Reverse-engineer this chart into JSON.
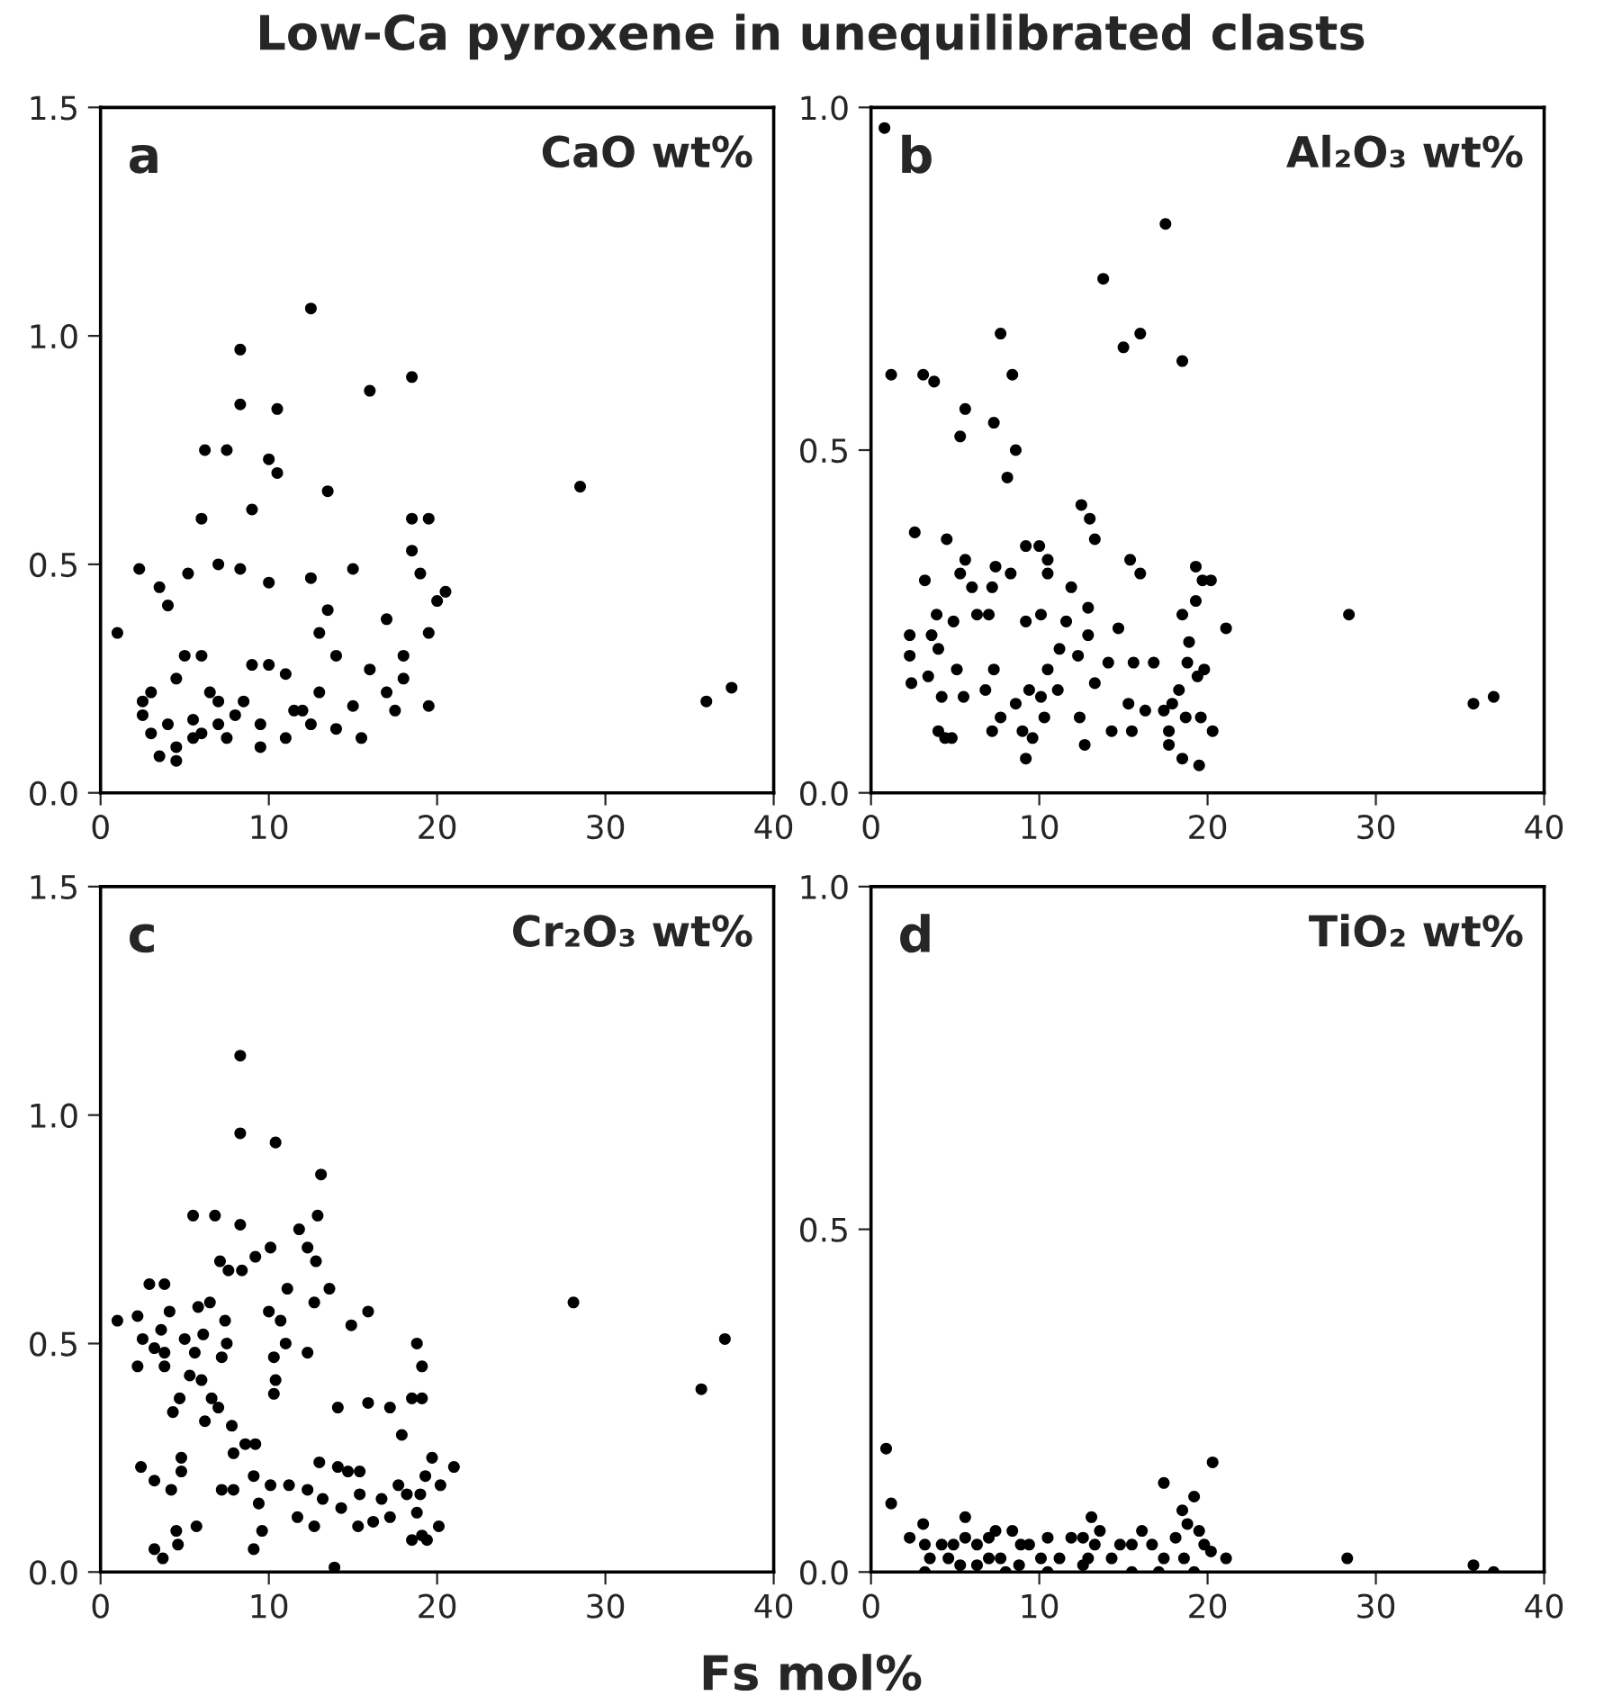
{
  "chart_data": [
    {
      "type": "scatter",
      "title": "Low-Ca pyroxene in unequilibrated clasts",
      "annotations": [
        "a",
        "CaO wt%"
      ],
      "xlim": [
        0,
        40
      ],
      "xticks": [
        0,
        10,
        20,
        30,
        40
      ],
      "ylim": [
        0,
        1.5
      ],
      "yticks": [
        {
          "value": 0,
          "label": "0.0"
        },
        {
          "value": 0.5,
          "label": "0.5"
        },
        {
          "value": 1.0,
          "label": "1.0"
        },
        {
          "value": 1.5,
          "label": "1.5"
        }
      ],
      "grid": false,
      "marker": "circle",
      "series": [
        {
          "color": "#000000",
          "x": [
            1,
            2.3,
            2.5,
            3,
            2.5,
            3.5,
            4,
            4.5,
            4.5,
            5,
            5.2,
            5.5,
            5.5,
            6,
            6.2,
            6,
            6.5,
            7,
            7,
            7,
            7.5,
            7.5,
            8.3,
            8.3,
            8.3,
            8.5,
            9,
            9,
            9.5,
            10,
            10,
            10,
            10.5,
            10.5,
            11,
            11,
            12.5,
            12,
            12.5,
            13,
            13,
            13.5,
            13.5,
            14,
            14,
            15,
            15,
            15.5,
            16,
            16,
            17,
            17.5,
            18,
            18.5,
            18.5,
            18.5,
            19,
            19.5,
            19.5,
            20,
            20.5,
            19.5,
            28.5,
            36,
            37.5,
            3,
            4,
            3.5,
            4.5,
            6,
            8,
            9.5,
            11.5,
            12.5,
            17,
            18
          ],
          "values": [
            0.35,
            0.49,
            0.2,
            0.13,
            0.17,
            0.45,
            0.41,
            0.25,
            0.1,
            0.3,
            0.48,
            0.16,
            0.12,
            0.3,
            0.75,
            0.6,
            0.22,
            0.2,
            0.15,
            0.5,
            0.75,
            0.12,
            0.97,
            0.85,
            0.49,
            0.2,
            0.62,
            0.28,
            0.15,
            0.73,
            0.28,
            0.46,
            0.84,
            0.7,
            0.26,
            0.12,
            1.06,
            0.18,
            0.47,
            0.35,
            0.22,
            0.66,
            0.4,
            0.3,
            0.14,
            0.49,
            0.19,
            0.12,
            0.88,
            0.27,
            0.38,
            0.18,
            0.25,
            0.91,
            0.6,
            0.53,
            0.48,
            0.6,
            0.35,
            0.42,
            0.44,
            0.19,
            0.67,
            0.2,
            0.23,
            0.22,
            0.15,
            0.08,
            0.07,
            0.13,
            0.17,
            0.1,
            0.18,
            0.15,
            0.22,
            0.3
          ]
        }
      ]
    },
    {
      "type": "scatter",
      "annotations": [
        "b",
        "Al₂O₃ wt%"
      ],
      "xlim": [
        0,
        40
      ],
      "xticks": [
        0,
        10,
        20,
        30,
        40
      ],
      "ylim": [
        0,
        1.0
      ],
      "yticks": [
        {
          "value": 0,
          "label": "0.0"
        },
        {
          "value": 0.5,
          "label": "0.5"
        },
        {
          "value": 1.0,
          "label": "1.0"
        }
      ],
      "grid": false,
      "marker": "circle",
      "series": [
        {
          "color": "#000000",
          "x": [
            0.8,
            1.2,
            3.1,
            3.75,
            5.6,
            5.3,
            7.3,
            7.7,
            8.4,
            8.6,
            8.1,
            13.8,
            15,
            16,
            17.5,
            18.5,
            12.5,
            13,
            13.3,
            2.6,
            4.5,
            28.4,
            35.8,
            37,
            3.2,
            3.9,
            4.9,
            5.3,
            5.6,
            6,
            6.3,
            7,
            7.2,
            7.4,
            8.3,
            9.2,
            10,
            10.5,
            10.5,
            11.9,
            12.9,
            12.9,
            11.6,
            10.1,
            9.2,
            14.7,
            15.4,
            16,
            19.3,
            19.7,
            20.2,
            21.1,
            19.3,
            18.5,
            18.9,
            18.8,
            16.8,
            15.6,
            14.1,
            12.3,
            11.2,
            10.5,
            11.1,
            10.1,
            9.4,
            8.6,
            7.7,
            7.3,
            6.8,
            5.1,
            5.5,
            4.2,
            3.4,
            2.4,
            2.3,
            2.3,
            3.6,
            4,
            4,
            4.4,
            4.8,
            7.2,
            9,
            9.2,
            9.6,
            10.3,
            12.4,
            12.7,
            13.3,
            14.3,
            15.3,
            15.5,
            16.3,
            17.4,
            17.9,
            18.3,
            17.7,
            17.7,
            18.5,
            19.5,
            18.7,
            19.6,
            20.3,
            19.4,
            19.8
          ],
          "values": [
            0.97,
            0.61,
            0.61,
            0.6,
            0.56,
            0.52,
            0.54,
            0.67,
            0.61,
            0.5,
            0.46,
            0.75,
            0.65,
            0.67,
            0.83,
            0.63,
            0.42,
            0.4,
            0.37,
            0.38,
            0.37,
            0.26,
            0.13,
            0.14,
            0.31,
            0.26,
            0.25,
            0.32,
            0.34,
            0.3,
            0.26,
            0.26,
            0.3,
            0.33,
            0.32,
            0.36,
            0.36,
            0.34,
            0.32,
            0.3,
            0.27,
            0.23,
            0.25,
            0.26,
            0.25,
            0.24,
            0.34,
            0.32,
            0.33,
            0.31,
            0.31,
            0.24,
            0.28,
            0.26,
            0.22,
            0.19,
            0.19,
            0.19,
            0.19,
            0.2,
            0.21,
            0.18,
            0.15,
            0.14,
            0.15,
            0.13,
            0.11,
            0.18,
            0.15,
            0.18,
            0.14,
            0.14,
            0.17,
            0.16,
            0.2,
            0.23,
            0.23,
            0.21,
            0.09,
            0.08,
            0.08,
            0.09,
            0.09,
            0.05,
            0.08,
            0.11,
            0.11,
            0.07,
            0.16,
            0.09,
            0.13,
            0.09,
            0.12,
            0.12,
            0.13,
            0.15,
            0.09,
            0.07,
            0.05,
            0.04,
            0.11,
            0.11,
            0.09,
            0.17,
            0.18
          ]
        }
      ]
    },
    {
      "type": "scatter",
      "annotations": [
        "c",
        "Cr₂O₃ wt%"
      ],
      "xlabel": "Fs mol%",
      "xlim": [
        0,
        40
      ],
      "xticks": [
        0,
        10,
        20,
        30,
        40
      ],
      "ylim": [
        0,
        1.5
      ],
      "yticks": [
        {
          "value": 0,
          "label": "0.0"
        },
        {
          "value": 0.5,
          "label": "0.5"
        },
        {
          "value": 1.0,
          "label": "1.0"
        },
        {
          "value": 1.5,
          "label": "1.5"
        }
      ],
      "grid": false,
      "marker": "circle",
      "series": [
        {
          "color": "#000000",
          "x": [
            8.3,
            8.3,
            10.4,
            13.1,
            12.9,
            11.8,
            12.3,
            12.8,
            5.5,
            6.8,
            8.3,
            7.1,
            7.6,
            8.4,
            9.2,
            10.1,
            11.1,
            12.7,
            13.6,
            14.9,
            15.9,
            18.8,
            19.1,
            28.1,
            37.1,
            35.7,
            2.9,
            3.8,
            1,
            2.2,
            2.5,
            3.6,
            4.1,
            3.2,
            3.8,
            2.2,
            3.8,
            5,
            5.6,
            6.1,
            5.8,
            6.5,
            7.4,
            7.5,
            7.2,
            5.3,
            6,
            4.7,
            4.3,
            6.6,
            7,
            6.2,
            7.8,
            10,
            10.7,
            11,
            10.3,
            10.4,
            10.3,
            12.3,
            14.1,
            15.9,
            17.2,
            18.5,
            19.1,
            17.9,
            8.6,
            7.9,
            9.2,
            2.4,
            3.2,
            4.2,
            4.8,
            4.8,
            7.2,
            7.9,
            9.1,
            10.1,
            11.2,
            12.3,
            13,
            13.2,
            14.1,
            14.7,
            15.4,
            15.4,
            16.7,
            17.7,
            18.2,
            19,
            19.7,
            19.3,
            20.2,
            21,
            18.8,
            18.5,
            19.1,
            20.1,
            19.4,
            17.2,
            16.2,
            15.3,
            14.3,
            12.7,
            11.7,
            9.6,
            9.4,
            9.1,
            5.7,
            4.6,
            4.5,
            3.2,
            3.7,
            13.9
          ],
          "values": [
            1.13,
            0.96,
            0.94,
            0.87,
            0.78,
            0.75,
            0.71,
            0.68,
            0.78,
            0.78,
            0.76,
            0.68,
            0.66,
            0.66,
            0.69,
            0.71,
            0.62,
            0.59,
            0.62,
            0.54,
            0.57,
            0.5,
            0.45,
            0.59,
            0.51,
            0.4,
            0.63,
            0.63,
            0.55,
            0.56,
            0.51,
            0.53,
            0.57,
            0.49,
            0.48,
            0.45,
            0.45,
            0.51,
            0.48,
            0.52,
            0.58,
            0.59,
            0.55,
            0.5,
            0.47,
            0.43,
            0.42,
            0.38,
            0.35,
            0.38,
            0.36,
            0.33,
            0.32,
            0.57,
            0.55,
            0.5,
            0.47,
            0.42,
            0.39,
            0.48,
            0.36,
            0.37,
            0.36,
            0.38,
            0.38,
            0.3,
            0.28,
            0.26,
            0.28,
            0.23,
            0.2,
            0.18,
            0.25,
            0.22,
            0.18,
            0.18,
            0.21,
            0.19,
            0.19,
            0.18,
            0.24,
            0.16,
            0.23,
            0.22,
            0.22,
            0.17,
            0.16,
            0.19,
            0.17,
            0.17,
            0.25,
            0.21,
            0.19,
            0.23,
            0.13,
            0.07,
            0.08,
            0.1,
            0.07,
            0.12,
            0.11,
            0.1,
            0.14,
            0.1,
            0.12,
            0.09,
            0.15,
            0.05,
            0.1,
            0.06,
            0.09,
            0.05,
            0.03,
            0.01
          ]
        }
      ]
    },
    {
      "type": "scatter",
      "annotations": [
        "d",
        "TiO₂ wt%"
      ],
      "xlim": [
        0,
        40
      ],
      "xticks": [
        0,
        10,
        20,
        30,
        40
      ],
      "ylim": [
        0,
        1.0
      ],
      "yticks": [
        {
          "value": 0,
          "label": "0.0"
        },
        {
          "value": 0.5,
          "label": "0.5"
        },
        {
          "value": 1.0,
          "label": "1.0"
        }
      ],
      "grid": false,
      "marker": "circle",
      "series": [
        {
          "color": "#000000",
          "x": [
            0.9,
            1.2,
            5.6,
            3.1,
            13.1,
            17.4,
            20.3,
            19.2,
            18.5,
            28.3,
            35.8,
            37,
            2.3,
            3.2,
            3.5,
            4.2,
            4.9,
            5.6,
            6.3,
            7,
            7.4,
            8.4,
            7.7,
            8.8,
            9.4,
            10.5,
            10.1,
            11.2,
            11.9,
            12.6,
            12.9,
            13.6,
            14.3,
            14.8,
            15.5,
            16.1,
            16.7,
            17.4,
            18.1,
            18.8,
            19.5,
            19.8,
            20.2,
            21.1,
            18.6,
            15.5,
            12.6,
            5.3,
            3.2,
            6.3,
            8,
            10.5,
            7,
            4.6,
            8.9,
            13.3,
            17.1,
            19.2
          ],
          "values": [
            0.18,
            0.1,
            0.08,
            0.07,
            0.08,
            0.13,
            0.16,
            0.11,
            0.09,
            0.02,
            0.01,
            0.0,
            0.05,
            0.04,
            0.02,
            0.04,
            0.04,
            0.05,
            0.04,
            0.05,
            0.06,
            0.06,
            0.02,
            0.01,
            0.04,
            0.05,
            0.02,
            0.02,
            0.05,
            0.05,
            0.02,
            0.06,
            0.02,
            0.04,
            0.04,
            0.06,
            0.04,
            0.02,
            0.05,
            0.07,
            0.06,
            0.04,
            0.03,
            0.02,
            0.02,
            0.0,
            0.01,
            0.01,
            0.0,
            0.01,
            0.0,
            0.0,
            0.02,
            0.02,
            0.04,
            0.04,
            0.0,
            0.0
          ]
        }
      ]
    }
  ]
}
